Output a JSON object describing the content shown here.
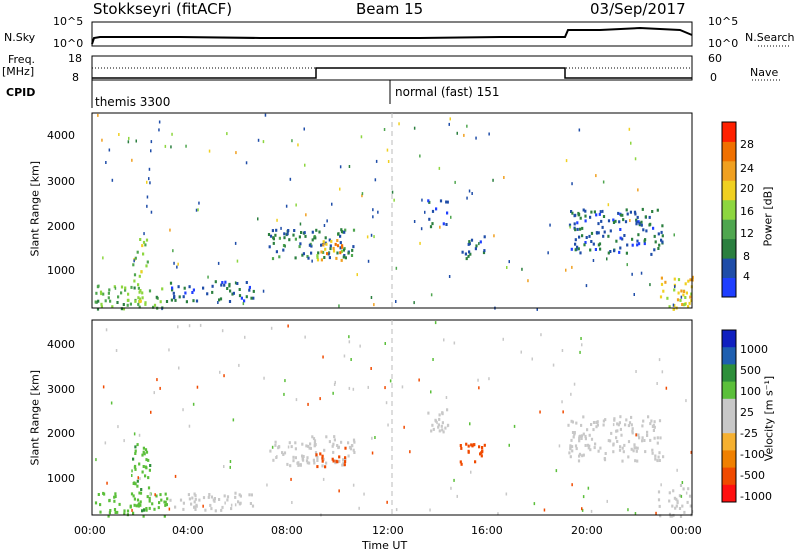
{
  "header": {
    "station": "Stokkseyri (fitACF)",
    "beam": "Beam 15",
    "date": "03/Sep/2017"
  },
  "left_labels": {
    "nsky": "N.Sky",
    "freq_1": "Freq.",
    "freq_2": "[MHz]",
    "cpid": "CPID"
  },
  "right_labels": {
    "nsearch": "N.Search",
    "nave": "Nave"
  },
  "noise_axis": {
    "top": "10^5",
    "bottom": "10^0"
  },
  "freq_axis": {
    "top": "18",
    "bottom": "8"
  },
  "nave_axis": {
    "top": "60",
    "bottom": "0"
  },
  "cpid": {
    "first": "themis 3300",
    "second": "normal (fast) 151"
  },
  "colors": {
    "power": [
      "#1f3fff",
      "#1f4da8",
      "#2b7f3f",
      "#4fa64f",
      "#8dd63f",
      "#f0d020",
      "#f0a020",
      "#f07000",
      "#ff2000"
    ],
    "velocity": [
      "#ff1010",
      "#f04a00",
      "#f08000",
      "#f5b030",
      "#c8c8c8",
      "#c8c8c8",
      "#5bbf3a",
      "#2d8f3a",
      "#1e5fb0",
      "#1020c0"
    ]
  },
  "chart_data": [
    {
      "type": "heatmap",
      "title": "Power",
      "ylabel": "Slant Range [km]",
      "y_ticks": [
        "4000",
        "3000",
        "2000",
        "1000"
      ],
      "ylim": [
        180,
        4500
      ],
      "xlim": [
        0,
        24
      ],
      "x_ticks": [
        "00:00",
        "04:00",
        "08:00",
        "12:00",
        "16:00",
        "20:00",
        "00:00"
      ],
      "colorbar": {
        "label": "Power [dB]",
        "ticks": [
          "28",
          "24",
          "20",
          "16",
          "12",
          "8",
          "4"
        ],
        "range": [
          0,
          30
        ]
      },
      "blobs": [
        {
          "t0": 0.1,
          "t1": 3.0,
          "r0": 180,
          "r1": 700,
          "v": 12
        },
        {
          "t0": 1.6,
          "t1": 2.3,
          "r0": 300,
          "r1": 1800,
          "v": 14
        },
        {
          "t0": 3.0,
          "t1": 6.5,
          "r0": 350,
          "r1": 800,
          "v": 6
        },
        {
          "t0": 7.0,
          "t1": 10.5,
          "r0": 1300,
          "r1": 1950,
          "v": 8
        },
        {
          "t0": 8.9,
          "t1": 10.1,
          "r0": 1250,
          "r1": 1750,
          "v": 20
        },
        {
          "t0": 13.4,
          "t1": 14.2,
          "r0": 2000,
          "r1": 2600,
          "v": 5
        },
        {
          "t0": 14.7,
          "t1": 15.7,
          "r0": 1300,
          "r1": 1800,
          "v": 6
        },
        {
          "t0": 19.0,
          "t1": 22.8,
          "r0": 1400,
          "r1": 2400,
          "v": 6
        },
        {
          "t0": 22.6,
          "t1": 24.0,
          "r0": 180,
          "r1": 900,
          "v": 18
        }
      ]
    },
    {
      "type": "heatmap",
      "title": "Velocity",
      "ylabel": "Slant Range [km]",
      "xlabel": "Time UT",
      "y_ticks": [
        "4000",
        "3000",
        "2000",
        "1000"
      ],
      "ylim": [
        180,
        4500
      ],
      "xlim": [
        0,
        24
      ],
      "x_ticks": [
        "00:00",
        "04:00",
        "08:00",
        "12:00",
        "16:00",
        "20:00",
        "00:00"
      ],
      "colorbar": {
        "label": "Velocity [m s⁻¹]",
        "ticks": [
          "1000",
          "500",
          "100",
          "25",
          "-25",
          "-100",
          "-500",
          "-1000"
        ]
      },
      "blobs": [
        {
          "t0": 0.1,
          "t1": 3.0,
          "r0": 180,
          "r1": 700,
          "v": 60
        },
        {
          "t0": 1.6,
          "t1": 2.3,
          "r0": 300,
          "r1": 1800,
          "v": 80
        },
        {
          "t0": 3.0,
          "t1": 6.5,
          "r0": 300,
          "r1": 700,
          "v": 0
        },
        {
          "t0": 7.0,
          "t1": 10.5,
          "r0": 1300,
          "r1": 1950,
          "v": 0
        },
        {
          "t0": 8.9,
          "t1": 10.1,
          "r0": 1250,
          "r1": 1750,
          "v": -300
        },
        {
          "t0": 13.4,
          "t1": 14.2,
          "r0": 2000,
          "r1": 2600,
          "v": 0
        },
        {
          "t0": 14.7,
          "t1": 15.7,
          "r0": 1300,
          "r1": 1800,
          "v": -300
        },
        {
          "t0": 19.0,
          "t1": 22.8,
          "r0": 1400,
          "r1": 2400,
          "v": 0
        },
        {
          "t0": 22.6,
          "t1": 24.0,
          "r0": 180,
          "r1": 900,
          "v": 0
        }
      ]
    }
  ]
}
